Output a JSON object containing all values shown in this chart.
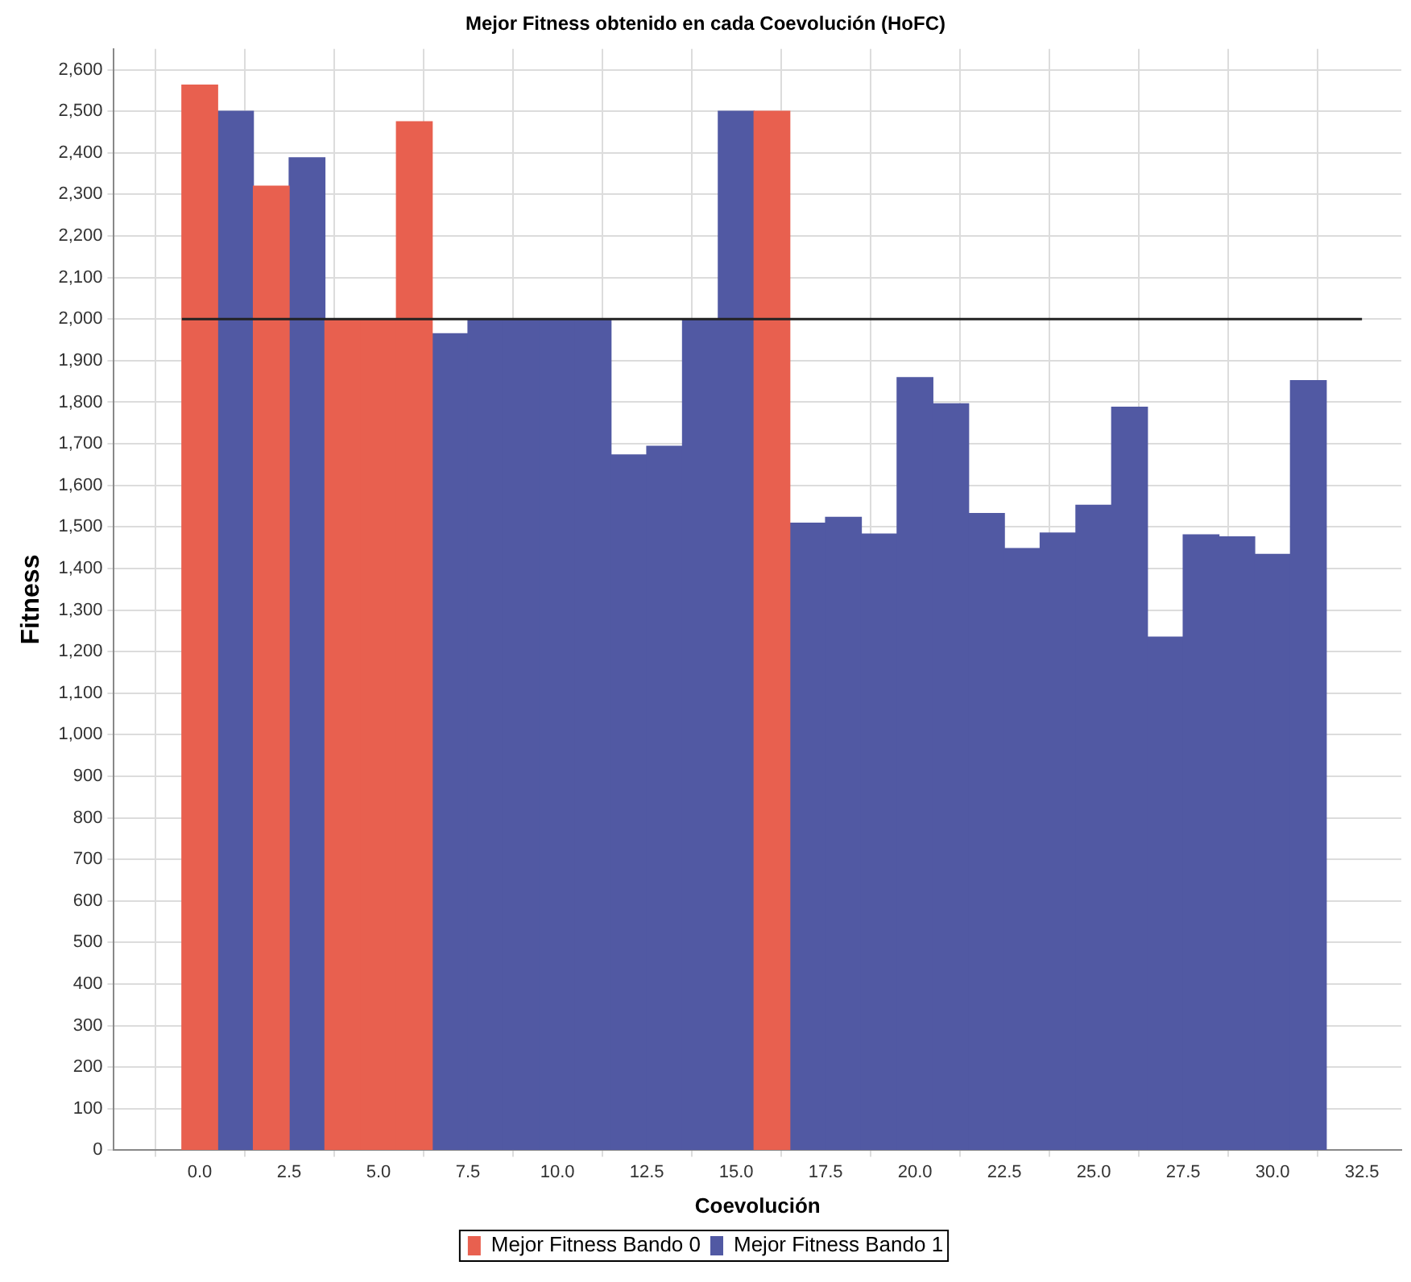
{
  "chart_data": {
    "type": "bar",
    "title": "Mejor Fitness obtenido en cada Coevolución (HoFC)",
    "xlabel": "Coevolución",
    "ylabel": "Fitness",
    "x": [
      0,
      1,
      2,
      3,
      4,
      5,
      6,
      7,
      8,
      9,
      10,
      11,
      12,
      13,
      14,
      15,
      16,
      17,
      18,
      19,
      20,
      21,
      22,
      23,
      24,
      25,
      26,
      27,
      28,
      29,
      30,
      31
    ],
    "series": [
      {
        "name": "Mejor Fitness Bando 0",
        "color": "#e8604f",
        "values": [
          2563,
          null,
          2320,
          null,
          2000,
          2000,
          2475,
          null,
          null,
          null,
          null,
          null,
          null,
          null,
          null,
          null,
          2500,
          null,
          null,
          null,
          null,
          null,
          null,
          null,
          null,
          null,
          null,
          null,
          null,
          null,
          null,
          null
        ]
      },
      {
        "name": "Mejor Fitness Bando 1",
        "color": "#5159a3",
        "values": [
          null,
          2500,
          null,
          2388,
          null,
          null,
          null,
          1965,
          2000,
          2000,
          2000,
          2000,
          1673,
          1694,
          2000,
          2500,
          null,
          1509,
          1523,
          1483,
          1859,
          1796,
          1532,
          1448,
          1485,
          1552,
          1788,
          1235,
          1481,
          1476,
          1434,
          1852
        ]
      },
      {
        "type": "line",
        "color": "#222222",
        "x": [
          -0.5,
          32.5
        ],
        "values": [
          2000,
          2000
        ]
      }
    ],
    "xlim": [
      -2.4,
      33.6
    ],
    "ylim": [
      0,
      2650
    ],
    "xticks": [
      {
        "value": 0,
        "label": "0.0"
      },
      {
        "value": 2.5,
        "label": "2.5"
      },
      {
        "value": 5,
        "label": "5.0"
      },
      {
        "value": 7.5,
        "label": "7.5"
      },
      {
        "value": 10,
        "label": "10.0"
      },
      {
        "value": 12.5,
        "label": "12.5"
      },
      {
        "value": 15,
        "label": "15.0"
      },
      {
        "value": 17.5,
        "label": "17.5"
      },
      {
        "value": 20,
        "label": "20.0"
      },
      {
        "value": 22.5,
        "label": "22.5"
      },
      {
        "value": 25,
        "label": "25.0"
      },
      {
        "value": 27.5,
        "label": "27.5"
      },
      {
        "value": 30,
        "label": "30.0"
      },
      {
        "value": 32.5,
        "label": "32.5"
      }
    ],
    "yticks": [
      0,
      100,
      200,
      300,
      400,
      500,
      600,
      700,
      800,
      900,
      {
        "value": 1000,
        "label": "1,000"
      },
      {
        "value": 1100,
        "label": "1,100"
      },
      {
        "value": 1200,
        "label": "1,200"
      },
      {
        "value": 1300,
        "label": "1,300"
      },
      {
        "value": 1400,
        "label": "1,400"
      },
      {
        "value": 1500,
        "label": "1,500"
      },
      {
        "value": 1600,
        "label": "1,600"
      },
      {
        "value": 1700,
        "label": "1,700"
      },
      {
        "value": 1800,
        "label": "1,800"
      },
      {
        "value": 1900,
        "label": "1,900"
      },
      {
        "value": 2000,
        "label": "2,000"
      },
      {
        "value": 2100,
        "label": "2,100"
      },
      {
        "value": 2200,
        "label": "2,200"
      },
      {
        "value": 2300,
        "label": "2,300"
      },
      {
        "value": 2400,
        "label": "2,400"
      },
      {
        "value": 2500,
        "label": "2,500"
      },
      {
        "value": 2600,
        "label": "2,600"
      }
    ],
    "grid": true,
    "legend": "bottom",
    "marker": "none"
  }
}
